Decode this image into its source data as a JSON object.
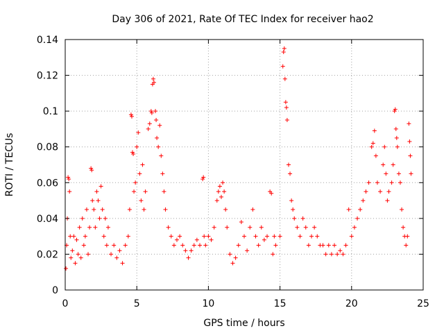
{
  "chart_data": {
    "type": "scatter",
    "title": "Day 306 of 2021, Rate Of TEC Index for receiver hao2",
    "xlabel": "GPS time / hours",
    "ylabel": "ROTI / TECUs",
    "xlim": [
      0,
      25
    ],
    "ylim": [
      0,
      0.14
    ],
    "xticks": [
      "0",
      "5",
      "10",
      "15",
      "20",
      "25"
    ],
    "xtick_values": [
      0,
      5,
      10,
      15,
      20,
      25
    ],
    "yticks": [
      "0",
      "0.02",
      "0.04",
      "0.06",
      "0.08",
      "0.1",
      "0.12",
      "0.14"
    ],
    "ytick_values": [
      0,
      0.02,
      0.04,
      0.06,
      0.08,
      0.1,
      0.12,
      0.14
    ],
    "grid": true,
    "marker": "plus",
    "color": "#ff0000",
    "series": [
      {
        "points": [
          [
            0.05,
            0.012
          ],
          [
            0.1,
            0.025
          ],
          [
            0.15,
            0.04
          ],
          [
            0.2,
            0.063
          ],
          [
            0.25,
            0.062
          ],
          [
            0.3,
            0.055
          ],
          [
            0.35,
            0.03
          ],
          [
            0.4,
            0.018
          ],
          [
            0.5,
            0.022
          ],
          [
            0.6,
            0.03
          ],
          [
            0.7,
            0.015
          ],
          [
            0.8,
            0.028
          ],
          [
            0.9,
            0.02
          ],
          [
            1.0,
            0.035
          ],
          [
            1.1,
            0.018
          ],
          [
            1.2,
            0.04
          ],
          [
            1.3,
            0.025
          ],
          [
            1.4,
            0.03
          ],
          [
            1.5,
            0.045
          ],
          [
            1.6,
            0.02
          ],
          [
            1.7,
            0.035
          ],
          [
            1.8,
            0.068
          ],
          [
            1.85,
            0.067
          ],
          [
            1.9,
            0.05
          ],
          [
            2.0,
            0.045
          ],
          [
            2.1,
            0.035
          ],
          [
            2.2,
            0.055
          ],
          [
            2.3,
            0.05
          ],
          [
            2.4,
            0.04
          ],
          [
            2.5,
            0.058
          ],
          [
            2.6,
            0.045
          ],
          [
            2.7,
            0.03
          ],
          [
            2.8,
            0.04
          ],
          [
            2.9,
            0.025
          ],
          [
            3.0,
            0.035
          ],
          [
            3.2,
            0.02
          ],
          [
            3.4,
            0.025
          ],
          [
            3.6,
            0.018
          ],
          [
            3.8,
            0.022
          ],
          [
            4.0,
            0.015
          ],
          [
            4.2,
            0.025
          ],
          [
            4.4,
            0.03
          ],
          [
            4.5,
            0.045
          ],
          [
            4.6,
            0.098
          ],
          [
            4.65,
            0.097
          ],
          [
            4.7,
            0.077
          ],
          [
            4.75,
            0.076
          ],
          [
            4.8,
            0.055
          ],
          [
            4.9,
            0.06
          ],
          [
            5.0,
            0.08
          ],
          [
            5.1,
            0.088
          ],
          [
            5.2,
            0.065
          ],
          [
            5.3,
            0.05
          ],
          [
            5.4,
            0.07
          ],
          [
            5.5,
            0.045
          ],
          [
            5.6,
            0.055
          ],
          [
            5.8,
            0.09
          ],
          [
            5.9,
            0.093
          ],
          [
            6.0,
            0.1
          ],
          [
            6.05,
            0.099
          ],
          [
            6.1,
            0.115
          ],
          [
            6.15,
            0.118
          ],
          [
            6.2,
            0.116
          ],
          [
            6.3,
            0.1
          ],
          [
            6.35,
            0.095
          ],
          [
            6.4,
            0.085
          ],
          [
            6.5,
            0.08
          ],
          [
            6.6,
            0.092
          ],
          [
            6.7,
            0.075
          ],
          [
            6.8,
            0.065
          ],
          [
            6.9,
            0.055
          ],
          [
            7.0,
            0.045
          ],
          [
            7.2,
            0.035
          ],
          [
            7.4,
            0.03
          ],
          [
            7.6,
            0.025
          ],
          [
            7.8,
            0.028
          ],
          [
            8.0,
            0.03
          ],
          [
            8.2,
            0.025
          ],
          [
            8.4,
            0.022
          ],
          [
            8.6,
            0.018
          ],
          [
            8.8,
            0.022
          ],
          [
            9.0,
            0.025
          ],
          [
            9.2,
            0.028
          ],
          [
            9.4,
            0.025
          ],
          [
            9.6,
            0.062
          ],
          [
            9.65,
            0.063
          ],
          [
            9.7,
            0.03
          ],
          [
            9.8,
            0.025
          ],
          [
            10.0,
            0.03
          ],
          [
            10.2,
            0.028
          ],
          [
            10.4,
            0.035
          ],
          [
            10.6,
            0.05
          ],
          [
            10.7,
            0.055
          ],
          [
            10.8,
            0.058
          ],
          [
            10.9,
            0.052
          ],
          [
            11.0,
            0.06
          ],
          [
            11.1,
            0.055
          ],
          [
            11.2,
            0.045
          ],
          [
            11.3,
            0.035
          ],
          [
            11.5,
            0.02
          ],
          [
            11.7,
            0.015
          ],
          [
            11.9,
            0.018
          ],
          [
            12.1,
            0.025
          ],
          [
            12.3,
            0.038
          ],
          [
            12.5,
            0.03
          ],
          [
            12.7,
            0.022
          ],
          [
            12.9,
            0.035
          ],
          [
            13.1,
            0.045
          ],
          [
            13.3,
            0.03
          ],
          [
            13.5,
            0.025
          ],
          [
            13.7,
            0.035
          ],
          [
            13.9,
            0.028
          ],
          [
            14.1,
            0.03
          ],
          [
            14.3,
            0.055
          ],
          [
            14.4,
            0.054
          ],
          [
            14.5,
            0.02
          ],
          [
            14.6,
            0.03
          ],
          [
            14.7,
            0.025
          ],
          [
            15.0,
            0.03
          ],
          [
            15.2,
            0.125
          ],
          [
            15.25,
            0.133
          ],
          [
            15.3,
            0.135
          ],
          [
            15.35,
            0.118
          ],
          [
            15.4,
            0.105
          ],
          [
            15.45,
            0.102
          ],
          [
            15.5,
            0.095
          ],
          [
            15.6,
            0.07
          ],
          [
            15.7,
            0.065
          ],
          [
            15.8,
            0.05
          ],
          [
            15.9,
            0.045
          ],
          [
            16.0,
            0.04
          ],
          [
            16.2,
            0.035
          ],
          [
            16.4,
            0.03
          ],
          [
            16.6,
            0.04
          ],
          [
            16.8,
            0.035
          ],
          [
            17.0,
            0.025
          ],
          [
            17.2,
            0.03
          ],
          [
            17.4,
            0.035
          ],
          [
            17.6,
            0.03
          ],
          [
            17.8,
            0.025
          ],
          [
            18.0,
            0.025
          ],
          [
            18.2,
            0.02
          ],
          [
            18.4,
            0.025
          ],
          [
            18.6,
            0.02
          ],
          [
            18.8,
            0.025
          ],
          [
            19.0,
            0.02
          ],
          [
            19.2,
            0.022
          ],
          [
            19.4,
            0.02
          ],
          [
            19.6,
            0.025
          ],
          [
            19.8,
            0.045
          ],
          [
            20.0,
            0.03
          ],
          [
            20.2,
            0.035
          ],
          [
            20.4,
            0.04
          ],
          [
            20.6,
            0.045
          ],
          [
            20.8,
            0.05
          ],
          [
            21.0,
            0.055
          ],
          [
            21.2,
            0.06
          ],
          [
            21.4,
            0.08
          ],
          [
            21.5,
            0.082
          ],
          [
            21.6,
            0.089
          ],
          [
            21.7,
            0.075
          ],
          [
            21.8,
            0.06
          ],
          [
            22.0,
            0.055
          ],
          [
            22.2,
            0.07
          ],
          [
            22.3,
            0.08
          ],
          [
            22.4,
            0.065
          ],
          [
            22.5,
            0.05
          ],
          [
            22.6,
            0.055
          ],
          [
            22.8,
            0.06
          ],
          [
            22.9,
            0.07
          ],
          [
            23.0,
            0.1
          ],
          [
            23.05,
            0.101
          ],
          [
            23.1,
            0.09
          ],
          [
            23.15,
            0.085
          ],
          [
            23.2,
            0.08
          ],
          [
            23.3,
            0.065
          ],
          [
            23.4,
            0.06
          ],
          [
            23.5,
            0.045
          ],
          [
            23.6,
            0.035
          ],
          [
            23.7,
            0.03
          ],
          [
            23.8,
            0.025
          ],
          [
            23.9,
            0.03
          ],
          [
            24.0,
            0.093
          ],
          [
            24.05,
            0.083
          ],
          [
            24.1,
            0.075
          ],
          [
            24.15,
            0.065
          ]
        ]
      }
    ]
  }
}
